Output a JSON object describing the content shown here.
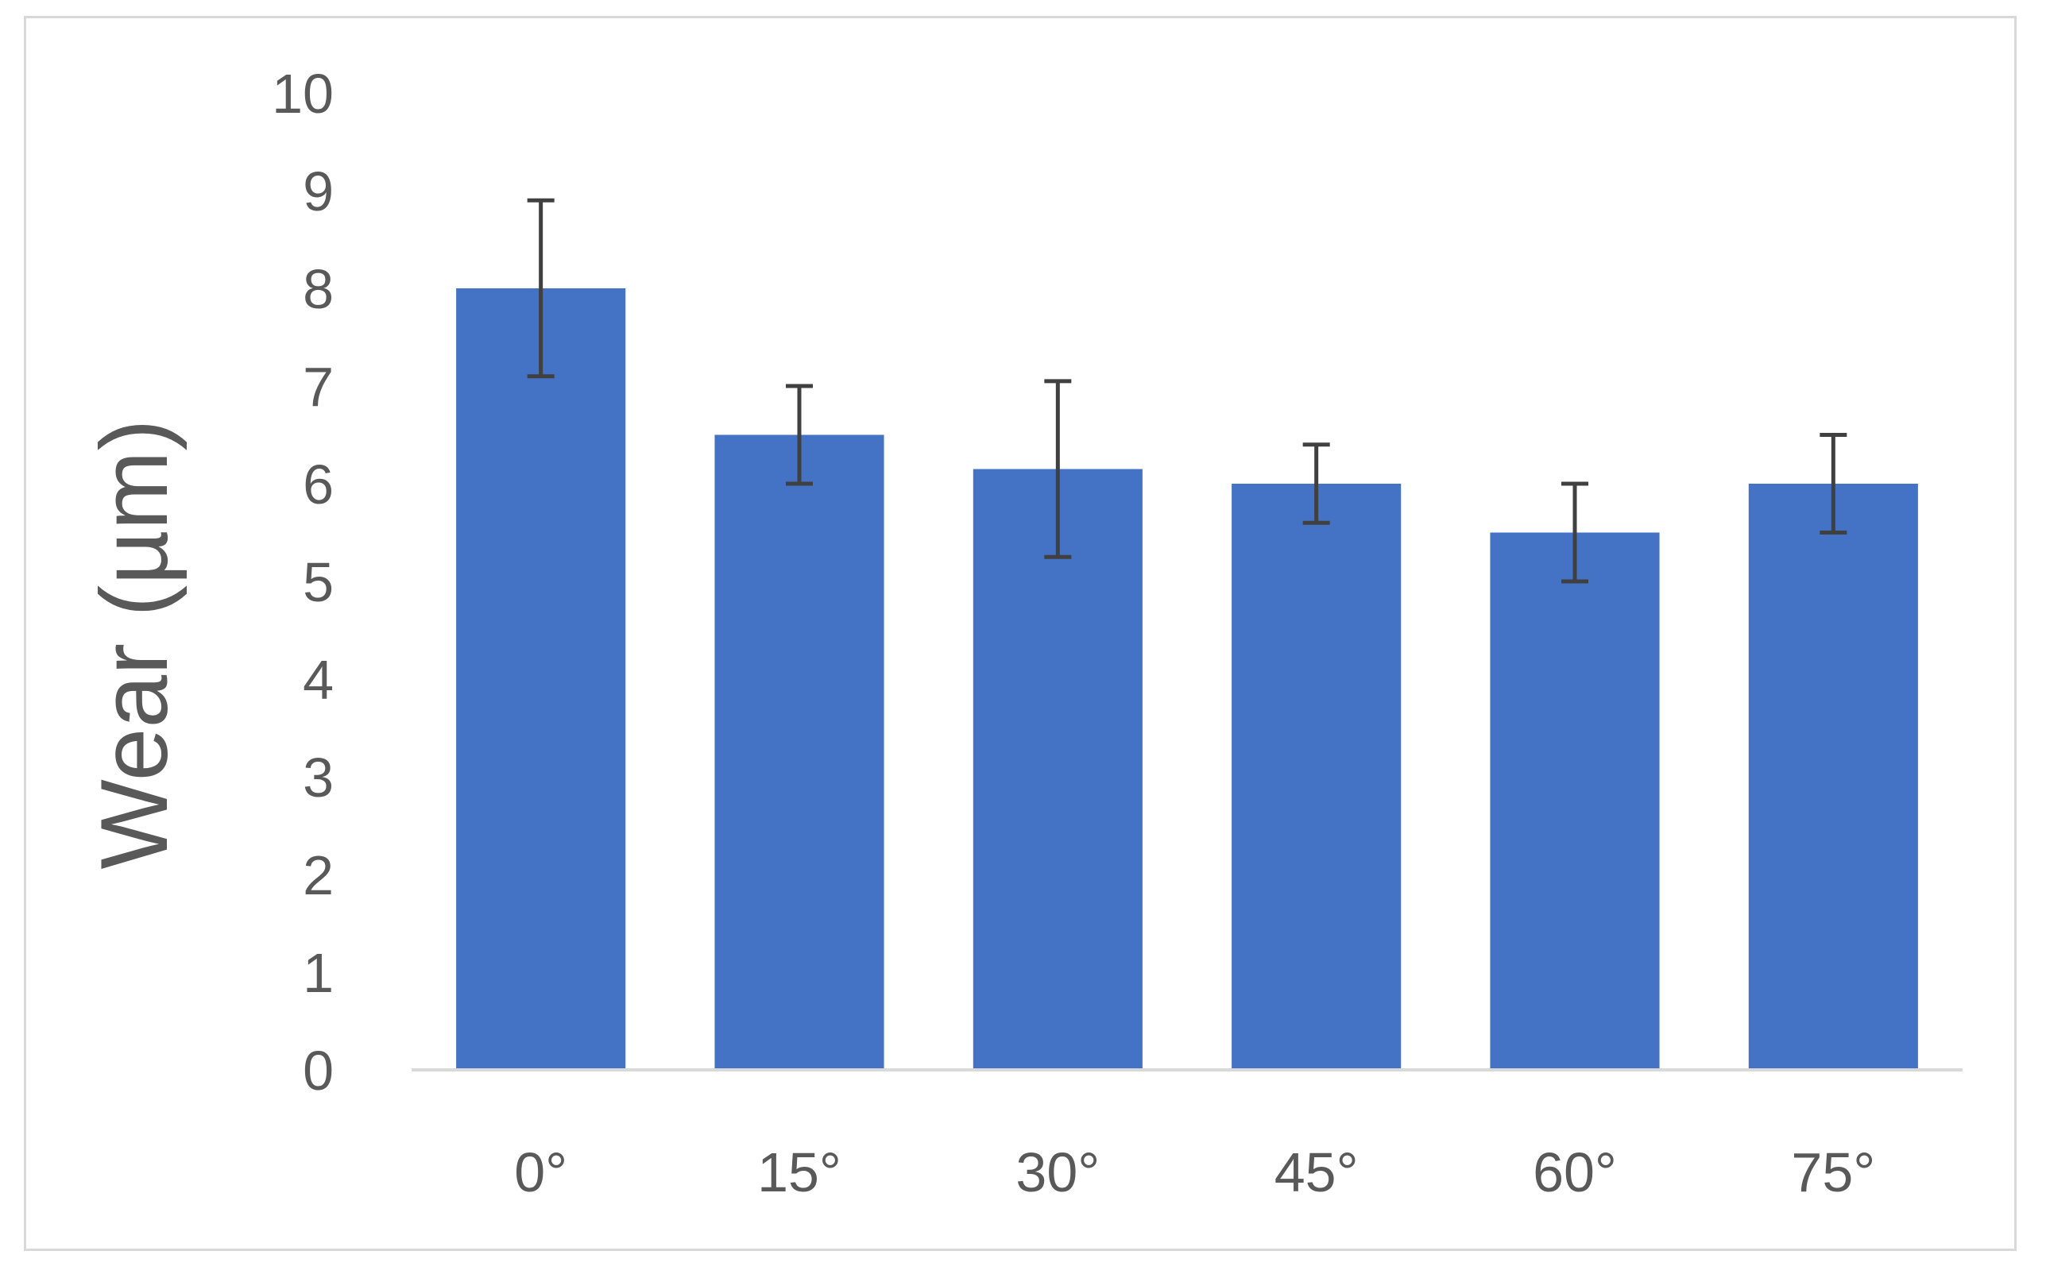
{
  "chart_data": {
    "type": "bar",
    "categories": [
      "0°",
      "15°",
      "30°",
      "45°",
      "60°",
      "75°"
    ],
    "values": [
      8.0,
      6.5,
      6.15,
      6.0,
      5.5,
      6.0
    ],
    "error_bars": {
      "lower": [
        7.1,
        6.0,
        5.25,
        5.6,
        5.0,
        5.5
      ],
      "upper": [
        8.9,
        7.0,
        7.05,
        6.4,
        6.0,
        6.5
      ]
    },
    "xlabel": "",
    "ylabel": "Wear (µm)",
    "ylim": [
      0,
      10
    ],
    "yticks": [
      "0",
      "1",
      "2",
      "3",
      "4",
      "5",
      "6",
      "7",
      "8",
      "9",
      "10"
    ],
    "grid": false,
    "legend": "none",
    "colors": {
      "bar": "#4472c4",
      "error": "#404040",
      "axis": "#d9d9d9",
      "text": "#595959"
    }
  }
}
